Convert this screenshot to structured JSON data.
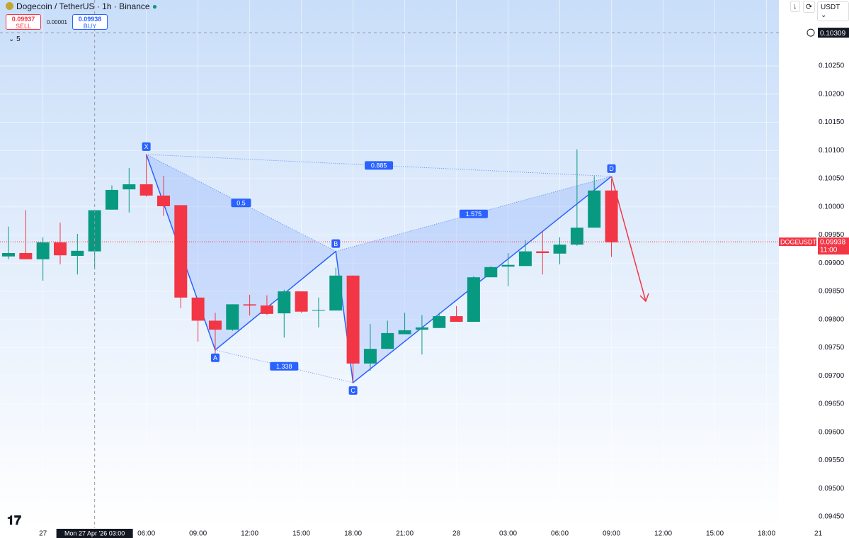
{
  "header": {
    "title": "Dogecoin / TetherUS · 1h · Binance",
    "sell_price": "0.09937",
    "sell": "SELL",
    "spread": "0.00001",
    "buy_price": "0.09938",
    "buy": "BUY",
    "indicator_count": "5",
    "currency": "USDT"
  },
  "chart_data": {
    "type": "candlestick",
    "symbol": "DOGEUSDT",
    "up_color": "#089981",
    "down_color": "#f23645",
    "categories": [
      null,
      null,
      "27",
      null,
      null,
      null,
      null,
      null,
      "06:00",
      null,
      null,
      "09:00",
      null,
      null,
      "12:00",
      null,
      null,
      "15:00",
      null,
      null,
      "18:00",
      null,
      null,
      "21:00",
      null,
      null,
      "28",
      null,
      null,
      "03:00",
      null,
      null,
      "06:00",
      null,
      null,
      "09:00",
      null,
      null,
      "12:00",
      null,
      null,
      "15:00",
      null,
      null,
      "18:00",
      null,
      null,
      "21"
    ],
    "open": [
      0.09912,
      0.09918,
      0.09907,
      0.09937,
      0.09913,
      0.09921,
      0.09995,
      0.10031,
      0.1004,
      0.1002,
      0.10003,
      0.09839,
      0.09798,
      0.09782,
      0.09827,
      0.09825,
      0.09811,
      0.0985,
      0.09816,
      0.09816,
      0.09878,
      0.09722,
      0.09748,
      0.09774,
      0.09782,
      0.09785,
      0.09806,
      0.09796,
      0.09875,
      0.09894,
      0.09895,
      0.09921,
      0.09917,
      0.09933,
      0.09963,
      0.10029,
      null,
      null,
      null,
      null,
      null,
      null,
      null,
      null,
      null,
      null,
      null,
      null
    ],
    "high": [
      0.09965,
      0.09994,
      0.09946,
      0.09972,
      0.09952,
      0.09995,
      0.10038,
      0.10069,
      0.10093,
      0.10055,
      0.10003,
      0.09839,
      0.09812,
      0.09827,
      0.09844,
      0.09843,
      0.09853,
      0.0985,
      0.09839,
      0.09892,
      0.09878,
      0.09792,
      0.09798,
      0.09812,
      0.09808,
      0.09812,
      0.09824,
      0.09877,
      0.09895,
      0.09918,
      0.09941,
      0.09956,
      0.09946,
      0.10102,
      0.10054,
      0.1005,
      null,
      null,
      null,
      null,
      null,
      null,
      null,
      null,
      null,
      null,
      null,
      null
    ],
    "low": [
      0.09907,
      0.09907,
      0.09869,
      0.09898,
      0.0988,
      0.09889,
      0.09995,
      0.0999,
      0.10018,
      0.09984,
      0.0982,
      0.09761,
      0.09729,
      0.0978,
      0.09807,
      0.09808,
      0.09768,
      0.09812,
      0.09786,
      0.09816,
      0.09688,
      0.09709,
      0.09748,
      0.09774,
      0.09738,
      0.09785,
      0.09796,
      0.09796,
      0.09875,
      0.09859,
      0.09895,
      0.0988,
      0.09898,
      0.09931,
      0.09963,
      0.09911,
      null,
      null,
      null,
      null,
      null,
      null,
      null,
      null,
      null,
      null,
      null,
      null
    ],
    "close": [
      0.09918,
      0.09907,
      0.09937,
      0.09914,
      0.09922,
      0.09994,
      0.1003,
      0.1004,
      0.1002,
      0.10001,
      0.09839,
      0.09798,
      0.09782,
      0.09827,
      0.09825,
      0.0981,
      0.0985,
      0.09814,
      0.09817,
      0.09878,
      0.09722,
      0.09748,
      0.09776,
      0.09781,
      0.09786,
      0.09806,
      0.09796,
      0.09875,
      0.09893,
      0.09897,
      0.09921,
      0.09918,
      0.09933,
      0.09963,
      0.10029,
      0.09937,
      null,
      null,
      null,
      null,
      null,
      null,
      null,
      null,
      null,
      null,
      null,
      null
    ],
    "ylim": [
      0.0943,
      0.10367
    ],
    "yticks": [
      {
        "value": 0.0945,
        "label": "0.09450"
      },
      {
        "value": 0.095,
        "label": "0.09500"
      },
      {
        "value": 0.0955,
        "label": "0.09550"
      },
      {
        "value": 0.096,
        "label": "0.09600"
      },
      {
        "value": 0.0965,
        "label": "0.09650"
      },
      {
        "value": 0.097,
        "label": "0.09700"
      },
      {
        "value": 0.0975,
        "label": "0.09750"
      },
      {
        "value": 0.098,
        "label": "0.09800"
      },
      {
        "value": 0.0985,
        "label": "0.09850"
      },
      {
        "value": 0.099,
        "label": "0.09900"
      },
      {
        "value": 0.0995,
        "label": "0.09950"
      },
      {
        "value": 0.1,
        "label": "0.10000"
      },
      {
        "value": 0.1005,
        "label": "0.10050"
      },
      {
        "value": 0.101,
        "label": "0.10100"
      },
      {
        "value": 0.1015,
        "label": "0.10150"
      },
      {
        "value": 0.102,
        "label": "0.10200"
      },
      {
        "value": 0.1025,
        "label": "0.10250"
      }
    ],
    "grid": true,
    "last_price": {
      "value": 0.09938,
      "label": "0.09938",
      "countdown": "11:00"
    },
    "crosshair": {
      "x": 5,
      "value": 0.10309,
      "label": "0.10309",
      "time_label": "Mon 27 Apr '26 03:00"
    },
    "pattern": {
      "color": "#2962ff",
      "points": [
        {
          "label": "X",
          "x": 8,
          "value": 0.10093
        },
        {
          "label": "A",
          "x": 12,
          "value": 0.09746
        },
        {
          "label": "B",
          "x": 19,
          "value": 0.09921
        },
        {
          "label": "C",
          "x": 20,
          "value": 0.09688
        },
        {
          "label": "D",
          "x": 35,
          "value": 0.10054
        }
      ],
      "ratios": [
        {
          "from": 0,
          "to": 2,
          "value": 0.5
        },
        {
          "from": 2,
          "to": 4,
          "value": 1.575
        },
        {
          "from": 0,
          "to": 4,
          "value": 0.885
        },
        {
          "from": 1,
          "to": 3,
          "value": 1.338
        }
      ]
    }
  }
}
